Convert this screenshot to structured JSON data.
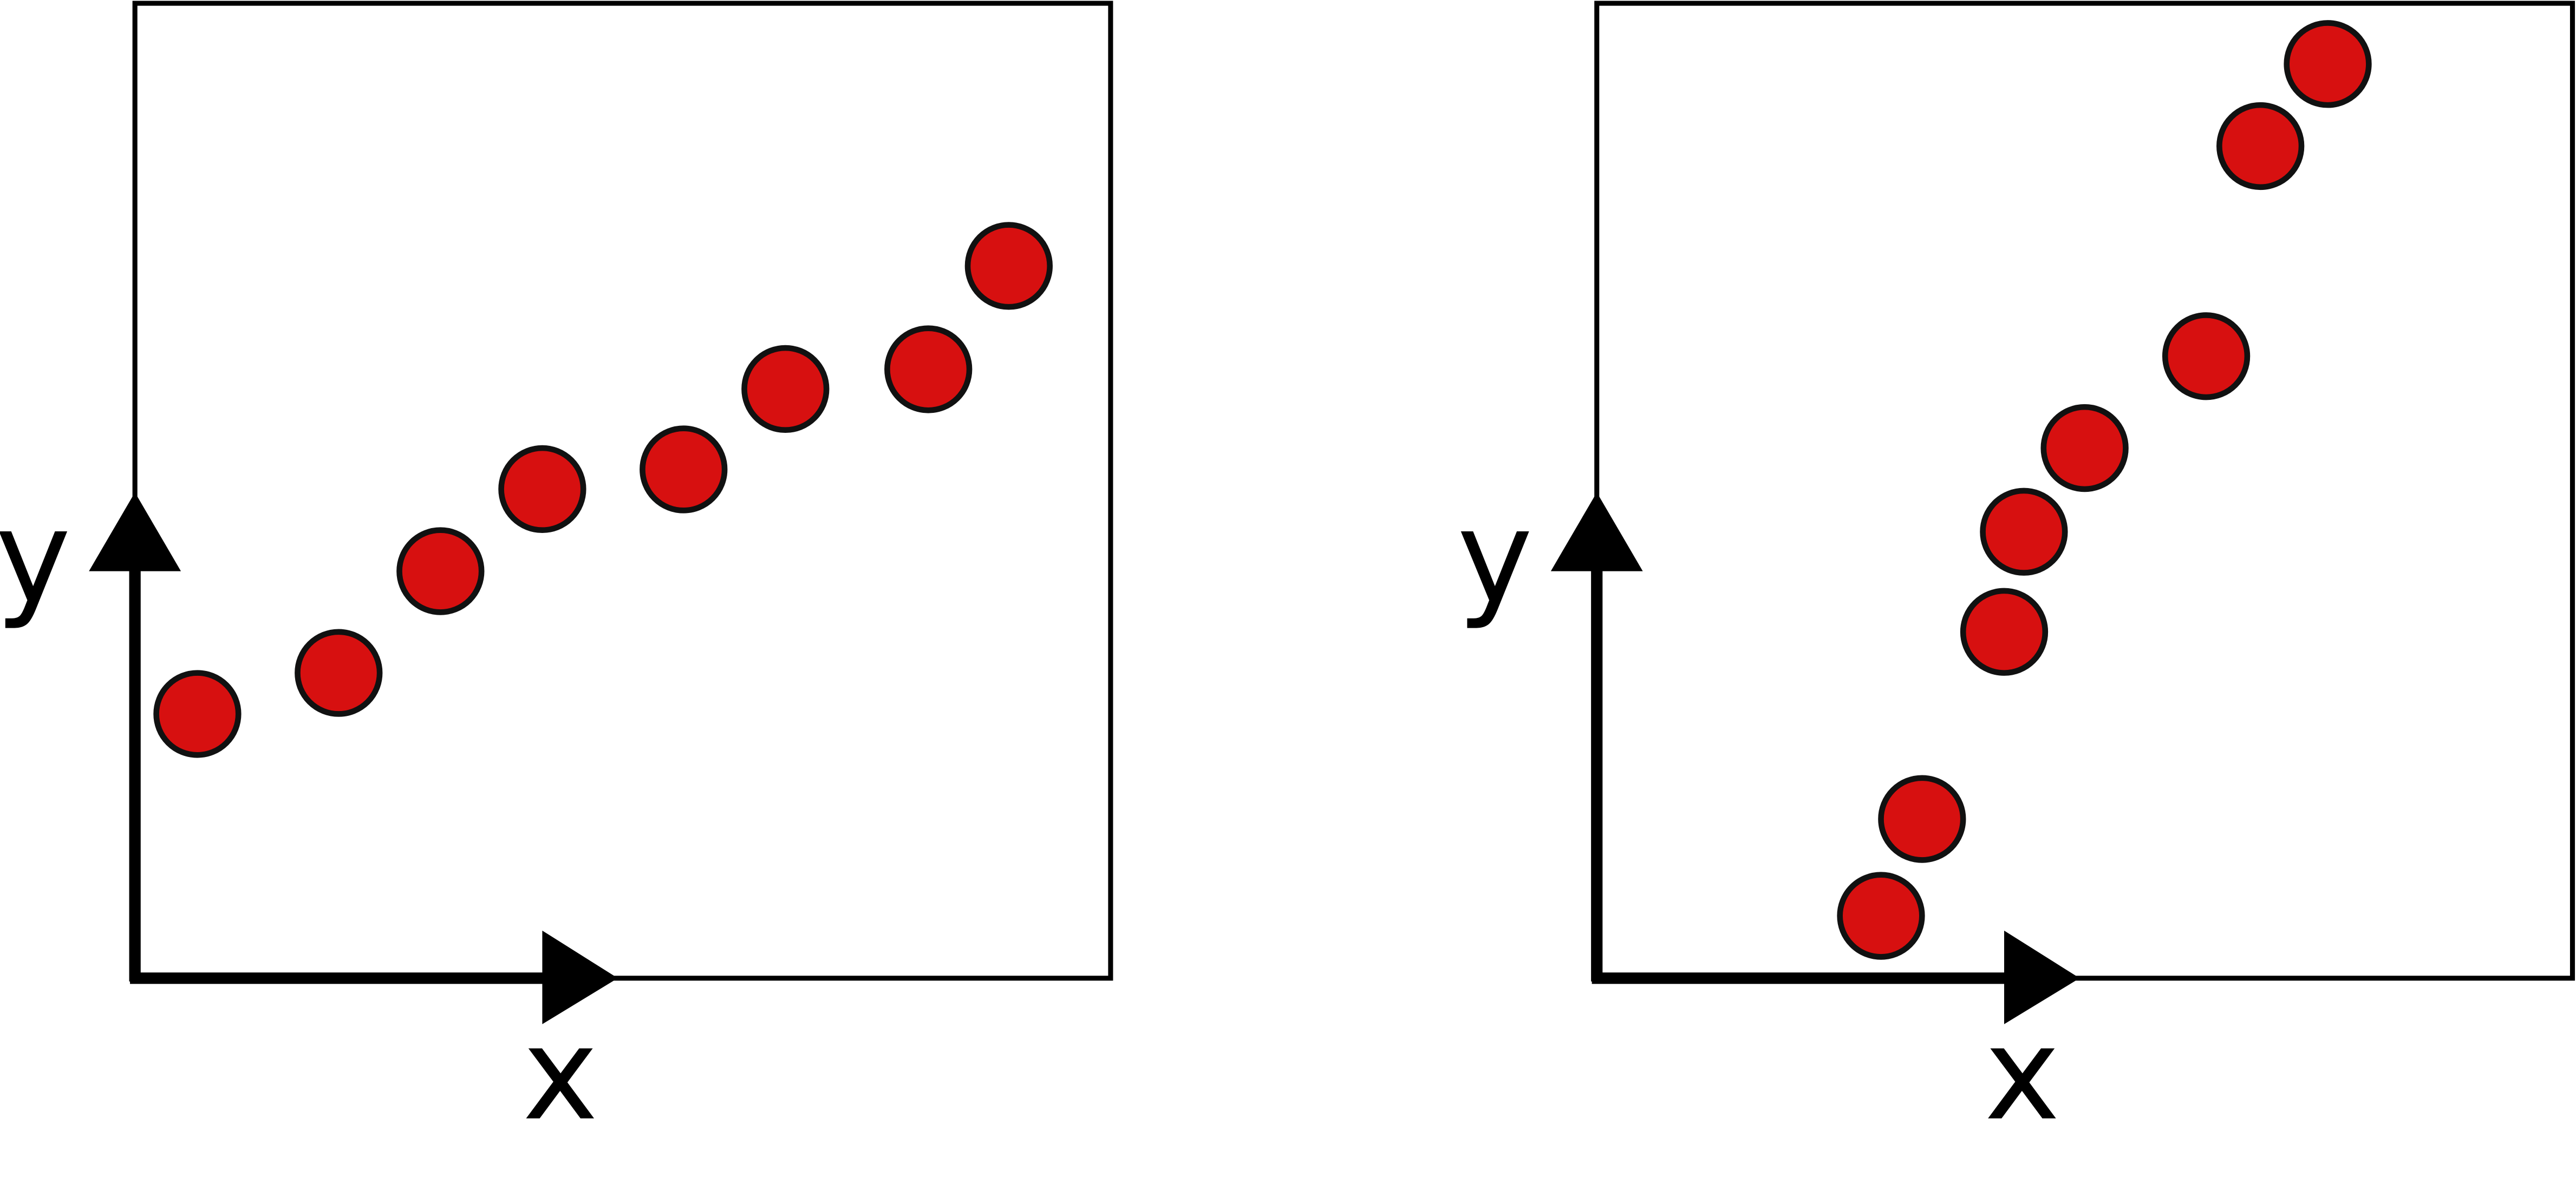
{
  "panels": [
    {
      "x_label": "x",
      "y_label": "y"
    },
    {
      "x_label": "x",
      "y_label": "y"
    }
  ]
}
